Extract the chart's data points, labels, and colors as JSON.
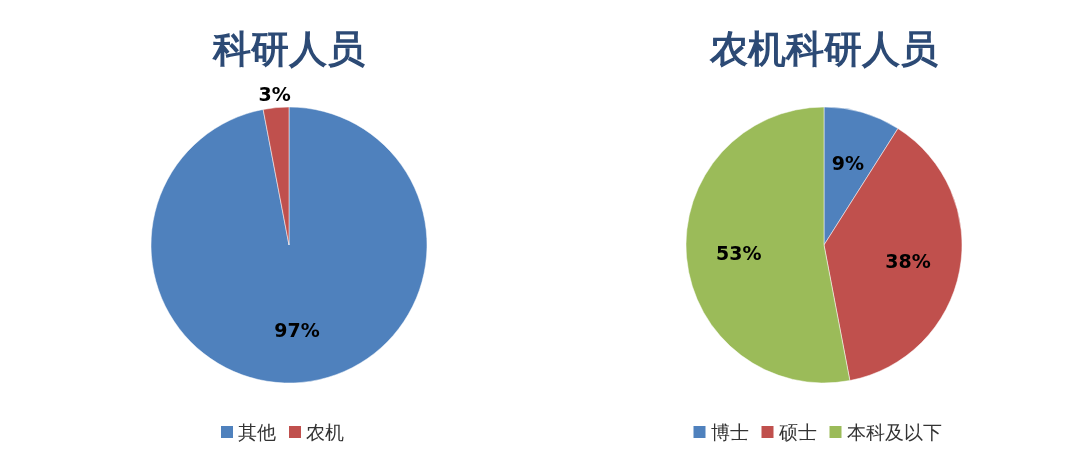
{
  "chart_data": [
    {
      "type": "pie",
      "title": "科研人员",
      "categories": [
        "其他",
        "农机"
      ],
      "values": [
        97,
        3
      ],
      "value_labels": [
        "97%",
        "3%"
      ],
      "colors": [
        "#4f81bd",
        "#c0504d"
      ],
      "legend": "bottom"
    },
    {
      "type": "pie",
      "title": "农机科研人员",
      "categories": [
        "博士",
        "硕士",
        "本科及以下"
      ],
      "values": [
        9,
        38,
        53
      ],
      "value_labels": [
        "9%",
        "38%",
        "53%"
      ],
      "colors": [
        "#4f81bd",
        "#c0504d",
        "#9bbb59"
      ],
      "legend": "bottom"
    }
  ]
}
